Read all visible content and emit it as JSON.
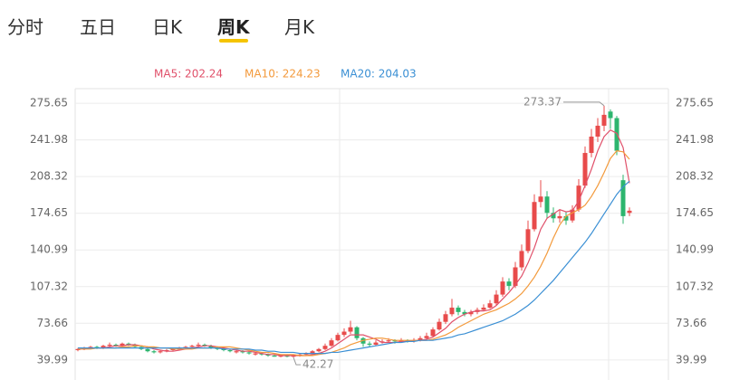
{
  "tabs": [
    "分时",
    "五日",
    "日K",
    "周K",
    "月K"
  ],
  "active_tab": 3,
  "chart_data": {
    "type": "candlestick",
    "up_color": "#e84b4b",
    "down_color": "#2db56e",
    "ylim": [
      21.6,
      289
    ],
    "yticks": [
      39.99,
      73.66,
      107.32,
      140.99,
      174.65,
      208.32,
      241.98,
      275.65
    ],
    "grid": true,
    "open": [
      49,
      50,
      51,
      52,
      51,
      53,
      54,
      53,
      55,
      54,
      52,
      50,
      48,
      47,
      48,
      49,
      50,
      51,
      52,
      53,
      54,
      53,
      51,
      50,
      49,
      47,
      48,
      47,
      45,
      46,
      45,
      44,
      43,
      44,
      43,
      44,
      45,
      46,
      48,
      50,
      53,
      58,
      63,
      66,
      70,
      60,
      55,
      54,
      56,
      57,
      58,
      57,
      58,
      57,
      58,
      60,
      62,
      68,
      75,
      82,
      88,
      84,
      82,
      84,
      86,
      88,
      92,
      100,
      112,
      108,
      125,
      140,
      160,
      185,
      190,
      175,
      170,
      172,
      168,
      178,
      200,
      230,
      245,
      255,
      268,
      262,
      205,
      175
    ],
    "high": [
      51,
      52,
      53,
      53,
      54,
      56,
      55,
      56,
      56,
      55,
      53,
      51,
      49,
      49,
      50,
      51,
      52,
      53,
      54,
      56,
      55,
      54,
      52,
      51,
      50,
      49,
      49,
      48,
      47,
      47,
      46,
      45,
      45,
      45,
      45,
      46,
      47,
      49,
      51,
      55,
      60,
      65,
      69,
      76,
      71,
      61,
      57,
      58,
      59,
      60,
      59,
      60,
      59,
      60,
      62,
      65,
      70,
      78,
      85,
      96,
      90,
      86,
      86,
      88,
      91,
      95,
      104,
      116,
      115,
      130,
      146,
      168,
      192,
      205,
      195,
      180,
      178,
      176,
      182,
      206,
      236,
      252,
      262,
      273.37,
      270,
      264,
      210,
      180
    ],
    "low": [
      48,
      49,
      50,
      50,
      50,
      52,
      52,
      52,
      53,
      51,
      49,
      47,
      46,
      46,
      47,
      48,
      49,
      50,
      51,
      52,
      52,
      50,
      49,
      48,
      47,
      46,
      46,
      45,
      44,
      44,
      43,
      43,
      42.5,
      42.5,
      42.27,
      43,
      44,
      45,
      47,
      49,
      52,
      57,
      61,
      64,
      58,
      52,
      52,
      53,
      55,
      56,
      55,
      56,
      56,
      56,
      57,
      59,
      61,
      67,
      73,
      80,
      81,
      80,
      80,
      82,
      85,
      87,
      90,
      98,
      104,
      106,
      122,
      138,
      158,
      180,
      170,
      166,
      166,
      164,
      166,
      176,
      198,
      226,
      240,
      250,
      252,
      228,
      165,
      172
    ],
    "close": [
      50,
      51,
      52,
      51,
      53,
      54,
      53,
      55,
      54,
      52,
      50,
      48,
      47,
      48,
      49,
      50,
      51,
      52,
      53,
      54,
      53,
      51,
      50,
      49,
      48,
      48,
      47,
      46,
      46,
      45,
      44,
      43,
      44,
      43,
      44,
      45,
      46,
      48,
      50,
      53,
      58,
      63,
      66,
      70,
      60,
      55,
      54,
      56,
      57,
      58,
      57,
      58,
      57,
      58,
      60,
      62,
      68,
      75,
      82,
      88,
      84,
      82,
      84,
      86,
      88,
      92,
      100,
      112,
      108,
      125,
      140,
      160,
      185,
      190,
      175,
      170,
      172,
      168,
      178,
      200,
      230,
      245,
      255,
      265,
      262,
      232,
      172,
      177
    ],
    "series": [
      {
        "name": "MA5: 202.24",
        "color": "#e0506a",
        "values": [
          50,
          50,
          51,
          51,
          51,
          52,
          53,
          53,
          54,
          54,
          53,
          52,
          50,
          49,
          48,
          48,
          49,
          50,
          51,
          52,
          53,
          53,
          52,
          51,
          50,
          49,
          48,
          48,
          47,
          46,
          45,
          45,
          44,
          44,
          44,
          44,
          44,
          45,
          46,
          48,
          51,
          55,
          59,
          63,
          63,
          63,
          61,
          59,
          56,
          56,
          56,
          57,
          57,
          58,
          58,
          59,
          61,
          65,
          69,
          75,
          79,
          82,
          84,
          85,
          85,
          86,
          90,
          96,
          102,
          109,
          117,
          129,
          143,
          160,
          170,
          174,
          178,
          176,
          177,
          186,
          200,
          215,
          232,
          245,
          251,
          248,
          235,
          202.24
        ]
      },
      {
        "name": "MA10: 224.23",
        "color": "#f39a3c",
        "values": [
          50,
          50,
          50,
          51,
          51,
          51,
          51,
          52,
          52,
          53,
          53,
          52,
          52,
          51,
          51,
          50,
          50,
          50,
          50,
          51,
          51,
          51,
          52,
          52,
          52,
          51,
          50,
          49,
          48,
          47,
          47,
          46,
          45,
          45,
          45,
          44,
          44,
          44,
          45,
          46,
          47,
          49,
          51,
          54,
          56,
          58,
          59,
          60,
          60,
          59,
          58,
          58,
          58,
          58,
          58,
          58,
          59,
          61,
          63,
          66,
          70,
          73,
          76,
          79,
          82,
          84,
          86,
          89,
          92,
          96,
          101,
          108,
          116,
          126,
          138,
          152,
          164,
          172,
          175,
          178,
          182,
          190,
          200,
          212,
          225,
          232,
          231,
          224.23
        ]
      },
      {
        "name": "MA20: 204.03",
        "color": "#3a8fd4",
        "values": [
          51,
          51,
          51,
          51,
          51,
          51,
          51,
          51,
          51,
          51,
          51,
          51,
          51,
          51,
          51,
          51,
          51,
          51,
          51,
          51,
          51,
          51,
          51,
          50,
          50,
          50,
          50,
          50,
          49,
          49,
          48,
          48,
          47,
          47,
          47,
          46,
          46,
          46,
          46,
          46,
          47,
          47,
          48,
          49,
          50,
          51,
          52,
          53,
          54,
          55,
          56,
          56,
          57,
          57,
          58,
          58,
          58,
          59,
          60,
          61,
          63,
          64,
          66,
          68,
          70,
          72,
          74,
          76,
          79,
          82,
          86,
          90,
          95,
          101,
          107,
          113,
          120,
          127,
          134,
          141,
          148,
          156,
          165,
          174,
          183,
          192,
          199,
          204.03
        ]
      }
    ],
    "annotations": [
      {
        "text": "273.37",
        "value": 273.37,
        "index": 83
      },
      {
        "text": "42.27",
        "value": 42.27,
        "index": 34
      }
    ]
  }
}
